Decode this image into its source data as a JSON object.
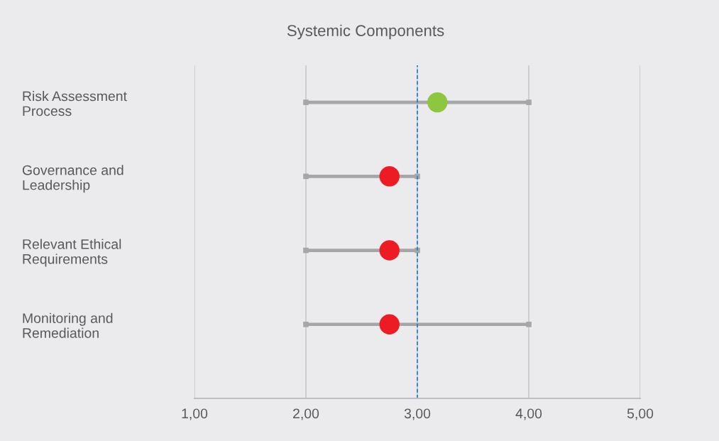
{
  "chart_data": {
    "type": "bar",
    "orientation": "horizontal",
    "title": "Systemic Components",
    "categories": [
      "Risk Assessment\nProcess",
      "Governance and\nLeadership",
      "Relevant Ethical\nRequirements",
      "Monitoring and\nRemediation"
    ],
    "series": [
      {
        "color": "#a6a6a6",
        "base": [
          2,
          2,
          2,
          2
        ],
        "values": [
          2,
          1,
          1,
          2
        ]
      },
      {
        "type": "scatter",
        "colors": [
          "#8dc63f",
          "#ed1c24",
          "#ed1c24",
          "#ed1c24"
        ],
        "values": [
          3.18,
          2.75,
          2.75,
          2.75
        ]
      }
    ],
    "xlim": [
      1,
      5
    ],
    "xticks": [
      {
        "value": 1,
        "label": "1,00"
      },
      {
        "value": 2,
        "label": "2,00"
      },
      {
        "value": 3,
        "label": "3,00"
      },
      {
        "value": 4,
        "label": "4,00"
      },
      {
        "value": 5,
        "label": "5,00"
      }
    ],
    "ref_lines": [
      {
        "axis": "x",
        "value": 3,
        "color": "#1f78d1",
        "line_style": "dashed"
      }
    ],
    "grid": "x",
    "marker": "circle",
    "legend": false
  }
}
